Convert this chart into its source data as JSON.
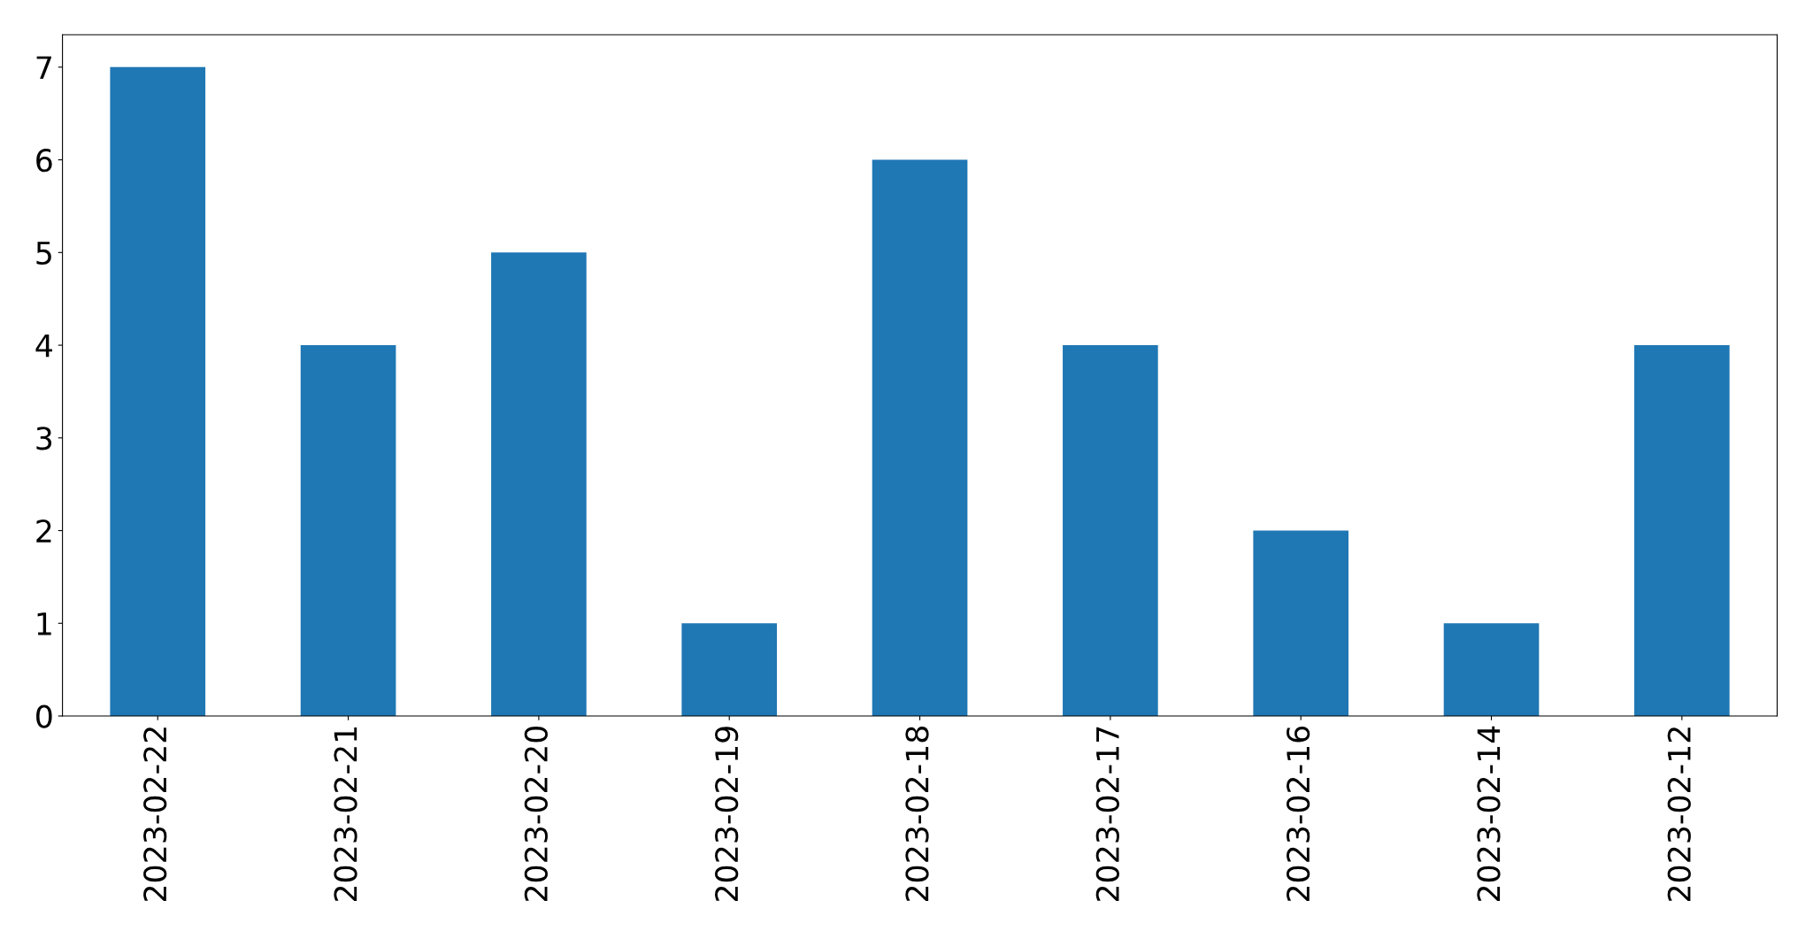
{
  "chart_data": {
    "type": "bar",
    "categories": [
      "2023-02-22",
      "2023-02-21",
      "2023-02-20",
      "2023-02-19",
      "2023-02-18",
      "2023-02-17",
      "2023-02-16",
      "2023-02-14",
      "2023-02-12"
    ],
    "values": [
      7,
      4,
      5,
      1,
      6,
      4,
      2,
      1,
      4
    ],
    "color": "#1f77b4",
    "ylim": [
      0,
      7.35
    ],
    "yticks": [
      0,
      1,
      2,
      3,
      4,
      5,
      6,
      7
    ],
    "grid": false,
    "legend": false
  }
}
